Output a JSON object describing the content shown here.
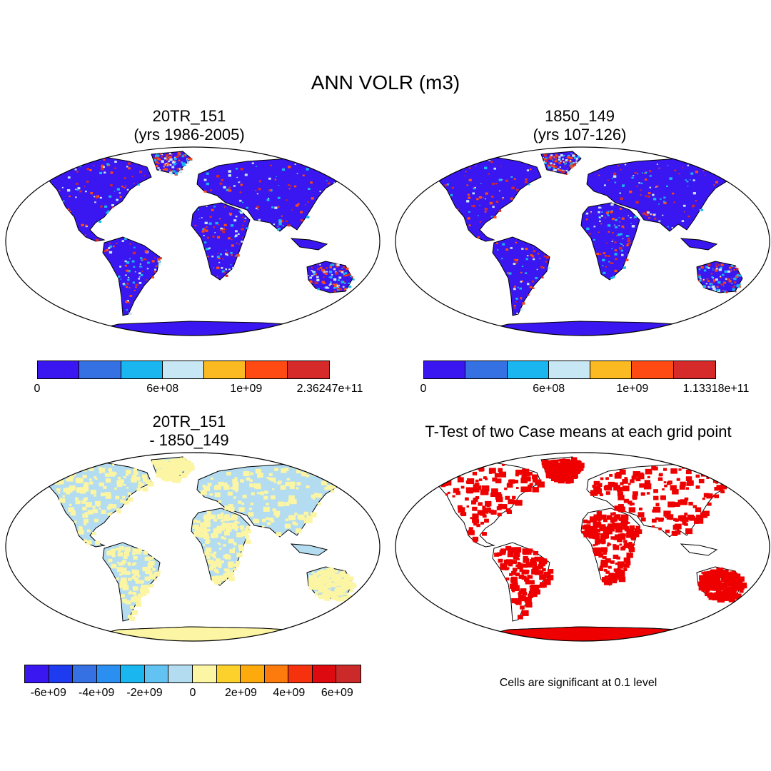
{
  "title": "ANN VOLR (m3)",
  "panels": [
    {
      "title_line1": "20TR_151",
      "title_line2": "(yrs 1986-2005)"
    },
    {
      "title_line1": "1850_149",
      "title_line2": "(yrs 107-126)"
    },
    {
      "title_line1": "20TR_151",
      "title_line2": "- 1850_149"
    },
    {
      "title_line1": "T-Test of two Case means at each grid point",
      "title_line2": ""
    }
  ],
  "colorbars": [
    {
      "colors": [
        "#3a16f0",
        "#3571e3",
        "#19b6f0",
        "#c8e7f5",
        "#fbb922",
        "#ff4a13",
        "#d62a2a"
      ],
      "labels": [
        "0",
        "6e+08",
        "1e+09",
        "2.36247e+11"
      ]
    },
    {
      "colors": [
        "#3a16f0",
        "#3571e3",
        "#19b6f0",
        "#c8e7f5",
        "#fbb922",
        "#ff4a13",
        "#d62a2a"
      ],
      "labels": [
        "0",
        "6e+08",
        "1e+09",
        "1.13318e+11"
      ]
    },
    {
      "colors": [
        "#3a16f0",
        "#1f3bf0",
        "#3571e3",
        "#2a8ff0",
        "#19b6f0",
        "#62c3f2",
        "#b4dcf0",
        "#fcf5a4",
        "#fdd12c",
        "#fcaa0c",
        "#fd7b0c",
        "#f6320e",
        "#dd0b10",
        "#cc2a2a"
      ],
      "labels": [
        "-6e+09",
        "-4e+09",
        "-2e+09",
        "0",
        "2e+09",
        "4e+09",
        "6e+09"
      ]
    }
  ],
  "note": "Cells are significant at 0.1 level",
  "map_colors": {
    "panel1_land": "#3a16f0",
    "panel2_land": "#3a16f0",
    "panel3_land": "#b4dcf0",
    "panel3_alt": "#fcf5a4",
    "panel4_sig": "#ee0000",
    "hot_spots": [
      "#19b6f0",
      "#ff4a13",
      "#d62a2a",
      "#c8e7f5"
    ]
  }
}
